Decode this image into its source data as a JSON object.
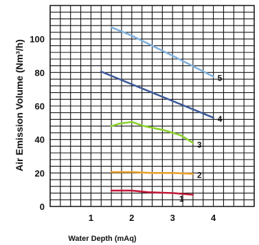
{
  "chart_data": {
    "type": "line",
    "title": "",
    "xlabel": "Water Depth (mAq)",
    "ylabel": "Air Emission Volume (Nm³/h)",
    "xlim": [
      0,
      5
    ],
    "ylim": [
      0,
      120
    ],
    "x_ticks": [
      1,
      2,
      3,
      4
    ],
    "y_ticks": [
      0,
      20,
      40,
      60,
      80,
      100
    ],
    "grid": true,
    "legend": "none",
    "series": [
      {
        "name": "1",
        "color": "#c2183a",
        "points": [
          [
            1.5,
            9.5
          ],
          [
            1.8,
            9.5
          ],
          [
            2.0,
            9.5
          ],
          [
            2.4,
            8.5
          ],
          [
            3.0,
            8.0
          ],
          [
            3.5,
            7.0
          ]
        ]
      },
      {
        "name": "2",
        "color": "#e8a12a",
        "points": [
          [
            1.5,
            20.5
          ],
          [
            2.0,
            20.5
          ],
          [
            2.5,
            20.0
          ],
          [
            3.0,
            20.0
          ],
          [
            3.5,
            19.5
          ]
        ]
      },
      {
        "name": "3",
        "color": "#8ad12c",
        "points": [
          [
            1.5,
            48.0
          ],
          [
            1.7,
            49.5
          ],
          [
            2.0,
            50.5
          ],
          [
            2.3,
            48.0
          ],
          [
            2.8,
            45.5
          ],
          [
            3.2,
            42.5
          ],
          [
            3.5,
            38.0
          ]
        ]
      },
      {
        "name": "4",
        "color": "#3d5a9a",
        "points": [
          [
            1.25,
            80.5
          ],
          [
            2.0,
            73.0
          ],
          [
            3.0,
            63.0
          ],
          [
            4.0,
            53.0
          ]
        ]
      },
      {
        "name": "5",
        "color": "#7fb1dd",
        "points": [
          [
            1.5,
            107.0
          ],
          [
            2.0,
            102.0
          ],
          [
            3.0,
            90.0
          ],
          [
            4.0,
            77.5
          ]
        ]
      }
    ]
  }
}
